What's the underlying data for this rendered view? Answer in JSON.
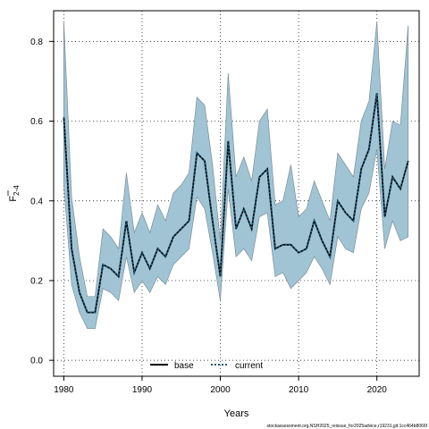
{
  "chart_data": {
    "type": "line",
    "xlabel": "Years",
    "ylabel": "F",
    "ylabel_sub": "2-4",
    "xlim": [
      1978.7,
      2025.4
    ],
    "ylim": [
      -0.04,
      0.877
    ],
    "x_ticks": [
      1980,
      1990,
      2000,
      2010,
      2020
    ],
    "y_ticks": [
      0.0,
      0.2,
      0.4,
      0.6,
      0.8
    ],
    "y_tick_labels": [
      "0.0",
      "0.2",
      "0.4",
      "0.6",
      "0.8"
    ],
    "grid": "dotted",
    "legend_position": "bottom-center",
    "colors": {
      "band": "#a0c4d4",
      "band_edge": "#7a8e98",
      "base": "#000000",
      "current": "#1f5a7a"
    },
    "x": [
      1980,
      1981,
      1982,
      1983,
      1984,
      1985,
      1986,
      1987,
      1988,
      1989,
      1990,
      1991,
      1992,
      1993,
      1994,
      1995,
      1996,
      1997,
      1998,
      1999,
      2000,
      2001,
      2002,
      2003,
      2004,
      2005,
      2006,
      2007,
      2008,
      2009,
      2010,
      2011,
      2012,
      2013,
      2014,
      2015,
      2016,
      2017,
      2018,
      2019,
      2020,
      2021,
      2022,
      2023,
      2024
    ],
    "series": [
      {
        "name": "base",
        "values": [
          0.61,
          0.28,
          0.17,
          0.12,
          0.12,
          0.24,
          0.23,
          0.21,
          0.35,
          0.22,
          0.27,
          0.23,
          0.28,
          0.26,
          0.31,
          0.33,
          0.35,
          0.52,
          0.5,
          0.35,
          0.21,
          0.55,
          0.33,
          0.38,
          0.33,
          0.46,
          0.48,
          0.28,
          0.29,
          0.29,
          0.27,
          0.28,
          0.35,
          0.3,
          0.26,
          0.4,
          0.37,
          0.35,
          0.48,
          0.53,
          0.67,
          0.36,
          0.46,
          0.43,
          0.5
        ]
      },
      {
        "name": "current",
        "values": [
          0.61,
          0.28,
          0.17,
          0.12,
          0.12,
          0.24,
          0.23,
          0.21,
          0.35,
          0.22,
          0.27,
          0.23,
          0.28,
          0.26,
          0.31,
          0.33,
          0.35,
          0.52,
          0.5,
          0.35,
          0.21,
          0.55,
          0.33,
          0.38,
          0.33,
          0.46,
          0.48,
          0.28,
          0.29,
          0.29,
          0.27,
          0.28,
          0.35,
          0.3,
          0.26,
          0.4,
          0.37,
          0.35,
          0.48,
          0.53,
          0.67,
          0.36,
          0.46,
          0.43,
          0.5
        ]
      }
    ],
    "band_upper": [
      0.85,
      0.41,
      0.26,
      0.16,
      0.16,
      0.33,
      0.31,
      0.28,
      0.47,
      0.32,
      0.37,
      0.32,
      0.39,
      0.35,
      0.42,
      0.44,
      0.47,
      0.66,
      0.64,
      0.49,
      0.3,
      0.72,
      0.46,
      0.51,
      0.45,
      0.6,
      0.63,
      0.39,
      0.4,
      0.49,
      0.36,
      0.38,
      0.45,
      0.4,
      0.35,
      0.52,
      0.49,
      0.46,
      0.6,
      0.65,
      0.85,
      0.48,
      0.6,
      0.59,
      0.84
    ],
    "band_lower": [
      0.44,
      0.19,
      0.12,
      0.08,
      0.08,
      0.18,
      0.17,
      0.15,
      0.26,
      0.17,
      0.2,
      0.17,
      0.21,
      0.19,
      0.24,
      0.26,
      0.28,
      0.41,
      0.38,
      0.27,
      0.15,
      0.43,
      0.26,
      0.28,
      0.25,
      0.36,
      0.37,
      0.21,
      0.22,
      0.18,
      0.2,
      0.22,
      0.26,
      0.23,
      0.19,
      0.31,
      0.28,
      0.27,
      0.38,
      0.42,
      0.53,
      0.28,
      0.35,
      0.3,
      0.31
    ]
  },
  "footer": "stockassessment.org,NSH2025_reissue_for2025advice,r19231,git:1cc464b8066f"
}
